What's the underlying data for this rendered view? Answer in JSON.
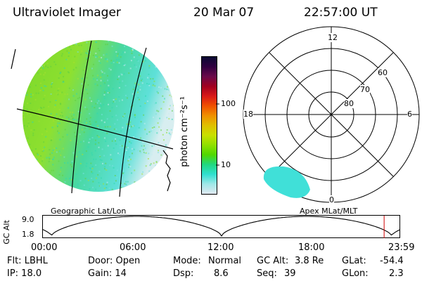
{
  "header": {
    "instrument": "Ultraviolet Imager",
    "date": "20 Mar 07",
    "time": "22:57:00 UT"
  },
  "geo_panel": {
    "label": "Geographic Lat/Lon"
  },
  "polar_panel": {
    "label": "Apex MLat/MLT",
    "mlt_labels": {
      "top": "12",
      "left": "18",
      "right": "6",
      "bottom": "0"
    },
    "lat_labels": [
      "60",
      "70",
      "80"
    ]
  },
  "colorbar": {
    "unit_label": "photon cm⁻²s⁻¹",
    "ticks": [
      "100",
      "10"
    ],
    "colors": [
      "#0a0a32",
      "#300040",
      "#6a0a4a",
      "#a00020",
      "#d81818",
      "#f05000",
      "#f09000",
      "#e0c000",
      "#c8e000",
      "#90e000",
      "#50d800",
      "#20d880",
      "#30e0d0",
      "#a0e8e8",
      "#e0e8f0"
    ]
  },
  "timeline": {
    "ylabel": "GC Alt",
    "yticks": [
      "9.0",
      "1.8"
    ],
    "xticks": [
      "00:00",
      "06:00",
      "12:00",
      "18:00",
      "23:59"
    ],
    "marker_fraction": 0.955
  },
  "status": {
    "flt": "Flt: LBHL",
    "ip": "IP: 18.0",
    "door": "Door: Open",
    "gain": "Gain: 14",
    "mode_label": "Mode:",
    "mode_value": "Normal",
    "dsp_label": "Dsp:",
    "dsp_value": "8.6",
    "gcalt_label": "GC Alt:",
    "gcalt_value": "3.8 Re",
    "seq_label": "Seq:",
    "seq_value": "39",
    "glat_label": "GLat:",
    "glat_value": "-54.4",
    "glon_label": "GLon:",
    "glon_value": "2.3"
  }
}
